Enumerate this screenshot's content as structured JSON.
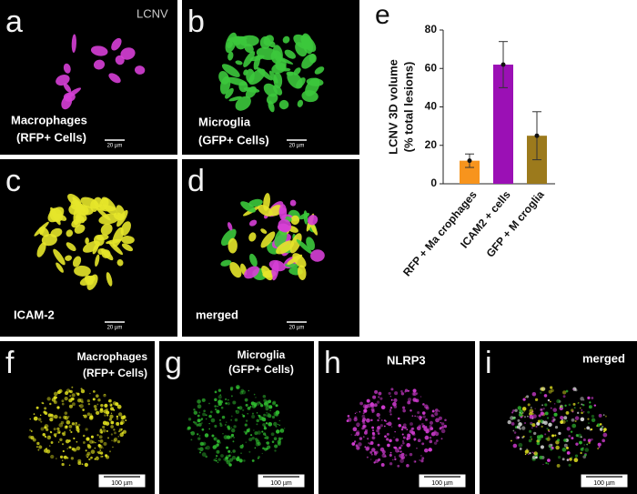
{
  "panels": [
    {
      "letter": "a",
      "labels": [
        "LCNV",
        "Macrophages",
        "(RFP+ Cells)"
      ],
      "scale": "20 µm"
    },
    {
      "letter": "b",
      "labels": [
        "Microglia",
        "(GFP+ Cells)"
      ],
      "scale": "20 µm"
    },
    {
      "letter": "c",
      "labels": [
        "ICAM-2"
      ],
      "scale": "20 µm"
    },
    {
      "letter": "d",
      "labels": [
        "merged"
      ],
      "scale": "20 µm"
    },
    {
      "letter": "f",
      "labels": [
        "Macrophages",
        "(RFP+ Cells)"
      ],
      "scale": "100 µm"
    },
    {
      "letter": "g",
      "labels": [
        "Microglia",
        "(GFP+ Cells)"
      ],
      "scale": "100 µm"
    },
    {
      "letter": "h",
      "labels": [
        "NLRP3"
      ],
      "scale": "100 µm"
    },
    {
      "letter": "i",
      "labels": [
        "merged"
      ],
      "scale": "100 µm"
    }
  ],
  "chart_data": {
    "type": "bar",
    "label": "e",
    "ylabel": [
      "LCNV 3D volume",
      "(% total lesions)"
    ],
    "categories": [
      "RFP + Ma crophages",
      "ICAM2 + cells",
      "GFP + M croglia"
    ],
    "values": [
      12,
      62,
      25
    ],
    "errors": [
      3.5,
      12,
      12.5
    ],
    "colors": [
      "#f7941d",
      "#9b10b5",
      "#9c7a1c"
    ],
    "ylim": [
      0,
      80
    ],
    "yticks": [
      0,
      20,
      40,
      60,
      80
    ]
  }
}
